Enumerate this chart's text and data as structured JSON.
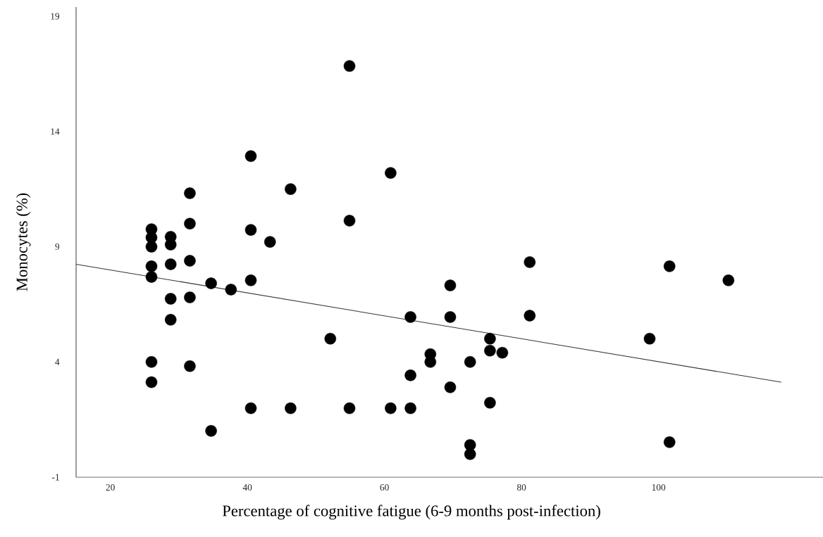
{
  "chart_data": {
    "type": "scatter",
    "xlabel": "Percentage of cognitive  fatigue (6-9 months post-infection)",
    "ylabel": "Monocytes (%)",
    "xlim": [
      15,
      124
    ],
    "ylim": [
      -1,
      19.4
    ],
    "xticks": [
      20,
      40,
      60,
      80,
      100
    ],
    "yticks": [
      -1,
      4,
      9,
      14,
      19
    ],
    "series": [
      {
        "color": "#000000",
        "marker": "circle",
        "x": [
          26.0,
          26.0,
          26.0,
          26.0,
          26.0,
          26.0,
          26.0,
          28.8,
          28.8,
          28.8,
          28.8,
          28.8,
          31.6,
          31.6,
          31.6,
          31.6,
          31.6,
          34.7,
          34.7,
          37.6,
          40.5,
          40.5,
          40.5,
          40.5,
          43.3,
          46.3,
          46.3,
          52.1,
          54.9,
          54.9,
          54.9,
          60.9,
          60.9,
          63.8,
          63.8,
          63.8,
          66.7,
          66.7,
          69.6,
          69.6,
          69.6,
          72.5,
          72.5,
          72.5,
          75.4,
          75.4,
          75.4,
          77.2,
          81.2,
          81.2,
          98.7,
          101.6,
          101.6,
          110.2
        ],
        "values": [
          9.76,
          9.4,
          9.0,
          8.15,
          7.69,
          4.0,
          3.12,
          9.43,
          9.09,
          8.24,
          6.74,
          5.83,
          11.32,
          10.0,
          8.39,
          6.8,
          3.82,
          7.41,
          1.01,
          7.14,
          12.93,
          9.73,
          7.54,
          1.99,
          9.21,
          11.5,
          1.99,
          5.01,
          16.84,
          10.13,
          1.99,
          12.2,
          1.99,
          5.95,
          3.42,
          1.99,
          4.34,
          4.0,
          7.32,
          5.95,
          2.9,
          4.0,
          0.4,
          0.0,
          5.01,
          4.49,
          2.23,
          4.4,
          8.33,
          6.01,
          5.01,
          8.15,
          0.52,
          7.54
        ]
      },
      {
        "type": "line",
        "marker": "none",
        "color": "#333333",
        "x": [
          15,
          117.9
        ],
        "values": [
          8.24,
          3.12
        ]
      }
    ]
  }
}
